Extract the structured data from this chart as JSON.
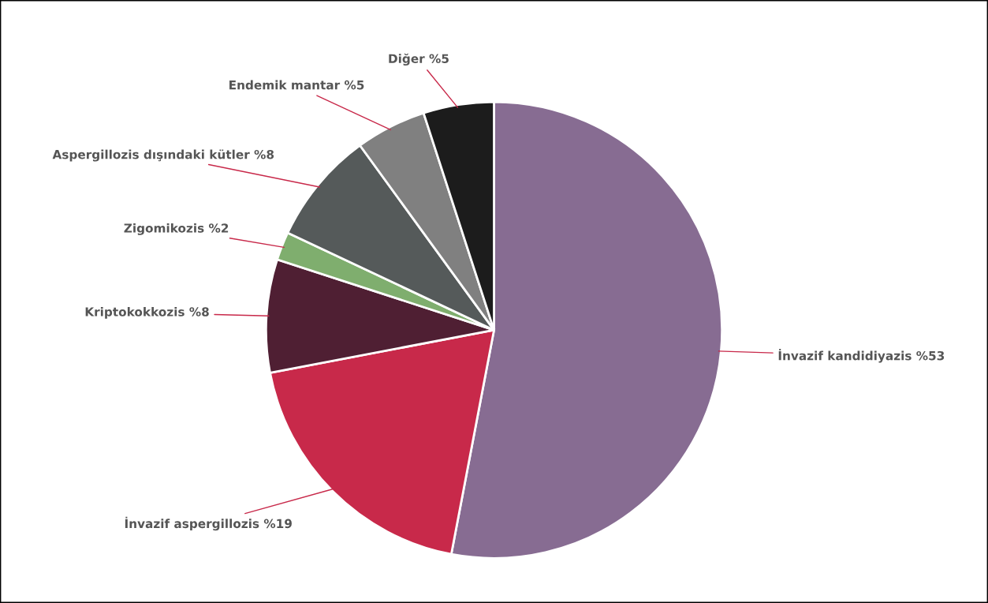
{
  "chart_data": {
    "type": "pie",
    "categories": [
      "İnvazif kandidiyazis",
      "İnvazif aspergillozis",
      "Kriptokokkozis",
      "Zigomikozis",
      "Aspergillozis dışındaki kütler",
      "Endemik mantar",
      "Diğer"
    ],
    "values": [
      53,
      19,
      8,
      2,
      8,
      5,
      5
    ],
    "value_labels": [
      "%53",
      "%19",
      "%8",
      "%2",
      "%8",
      "%5",
      "%5"
    ],
    "colors": [
      "#876c92",
      "#c8294a",
      "#4f1f33",
      "#7fae6e",
      "#555a5a",
      "#808080",
      "#1c1c1c"
    ]
  }
}
